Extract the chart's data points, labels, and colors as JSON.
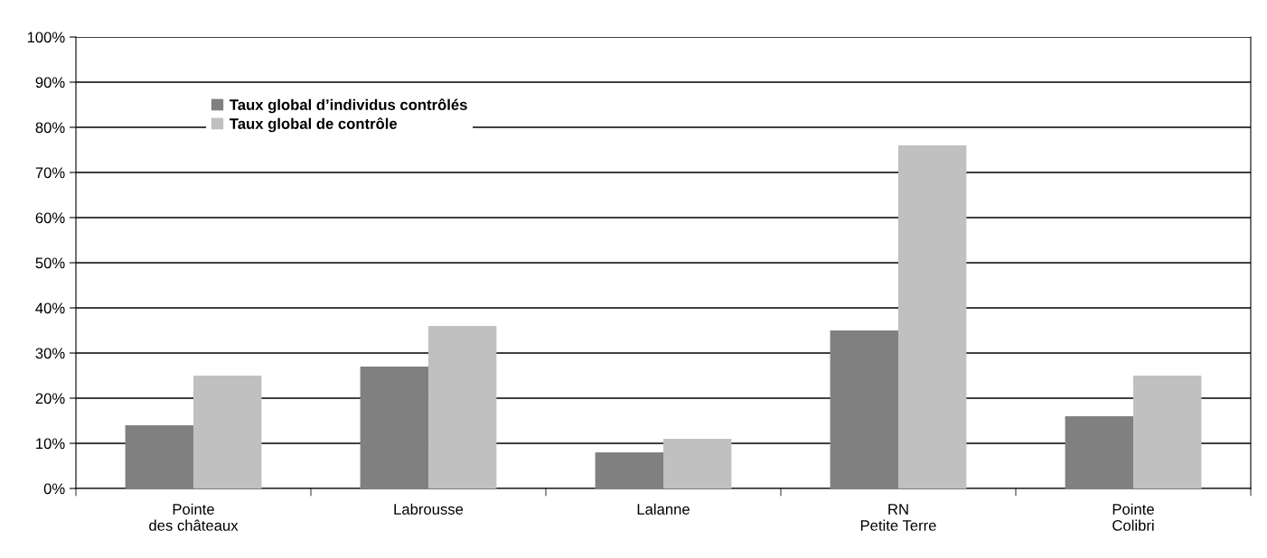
{
  "chart_data": {
    "type": "bar",
    "categories": [
      "Pointe\ndes châteaux",
      "Labrousse",
      "Lalanne",
      "RN\nPetite Terre",
      "Pointe\nColibri"
    ],
    "series": [
      {
        "name": "Taux global d’individus contrôlés",
        "color": "#808080",
        "values": [
          14,
          27,
          8,
          35,
          16
        ]
      },
      {
        "name": "Taux global de contrôle",
        "color": "#c0c0c0",
        "values": [
          25,
          36,
          11,
          76,
          25
        ]
      }
    ],
    "ylim": [
      0,
      100
    ],
    "yticks": [
      {
        "value": 0,
        "label": "0%"
      },
      {
        "value": 10,
        "label": "10%"
      },
      {
        "value": 20,
        "label": "20%"
      },
      {
        "value": 30,
        "label": "30%"
      },
      {
        "value": 40,
        "label": "40%"
      },
      {
        "value": 50,
        "label": "50%"
      },
      {
        "value": 60,
        "label": "60%"
      },
      {
        "value": 70,
        "label": "70%"
      },
      {
        "value": 80,
        "label": "80%"
      },
      {
        "value": 90,
        "label": "90%"
      },
      {
        "value": 100,
        "label": "100%"
      }
    ],
    "grid": "y",
    "legend": "top left"
  }
}
